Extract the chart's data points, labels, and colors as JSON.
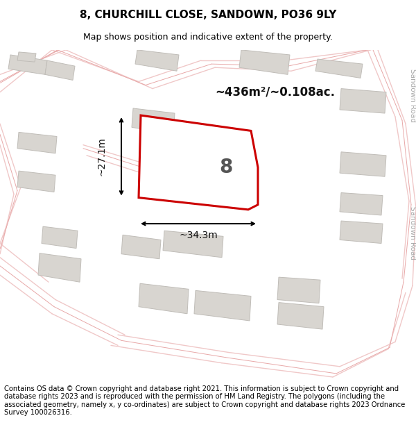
{
  "title": "8, CHURCHILL CLOSE, SANDOWN, PO36 9LY",
  "subtitle": "Map shows position and indicative extent of the property.",
  "area_text": "~436m²/~0.108ac.",
  "dim_width": "~34.3m",
  "dim_height": "~27.1m",
  "number_label": "8",
  "footer": "Contains OS data © Crown copyright and database right 2021. This information is subject to Crown copyright and database rights 2023 and is reproduced with the permission of HM Land Registry. The polygons (including the associated geometry, namely x, y co-ordinates) are subject to Crown copyright and database rights 2023 Ordnance Survey 100026316.",
  "map_bg": "#f5f2ee",
  "road_light": "#f0c8c8",
  "road_med": "#e8a8a8",
  "road_dark": "#d08888",
  "building_fill": "#d8d5d0",
  "building_edge": "#c0bdb8",
  "plot_fill": "#ffffff",
  "plot_edge": "#cc0000",
  "label_color": "#555555",
  "sandown_color": "#aaaaaa",
  "title_fontsize": 11,
  "subtitle_fontsize": 9,
  "footer_fontsize": 7.2,
  "sandown_road_label": "Sandown Road"
}
